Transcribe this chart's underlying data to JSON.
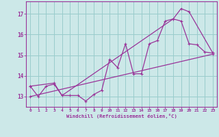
{
  "xlabel": "Windchill (Refroidissement éolien,°C)",
  "background_color": "#cce8e8",
  "grid_color": "#99cccc",
  "line_color": "#993399",
  "xlim": [
    -0.5,
    23.5
  ],
  "ylim": [
    12.5,
    17.6
  ],
  "yticks": [
    13,
    14,
    15,
    16,
    17
  ],
  "xticks": [
    0,
    1,
    2,
    3,
    4,
    5,
    6,
    7,
    8,
    9,
    10,
    11,
    12,
    13,
    14,
    15,
    16,
    17,
    18,
    19,
    20,
    21,
    22,
    23
  ],
  "line1_x": [
    0,
    1,
    2,
    3,
    4,
    5,
    6,
    7,
    8,
    9,
    10,
    11,
    12,
    13,
    14,
    15,
    16,
    17,
    18,
    19,
    20,
    21,
    22,
    23
  ],
  "line1_y": [
    13.5,
    13.0,
    13.5,
    13.6,
    13.05,
    13.05,
    13.05,
    12.78,
    13.1,
    13.3,
    14.8,
    14.4,
    15.55,
    14.1,
    14.1,
    15.55,
    15.7,
    16.65,
    16.75,
    16.65,
    15.55,
    15.5,
    15.15,
    15.1
  ],
  "line2_x": [
    0,
    3,
    4,
    18,
    19,
    20,
    23
  ],
  "line2_y": [
    13.5,
    13.65,
    13.05,
    16.75,
    17.25,
    17.1,
    15.1
  ],
  "line3_x": [
    0,
    23
  ],
  "line3_y": [
    13.0,
    15.05
  ]
}
